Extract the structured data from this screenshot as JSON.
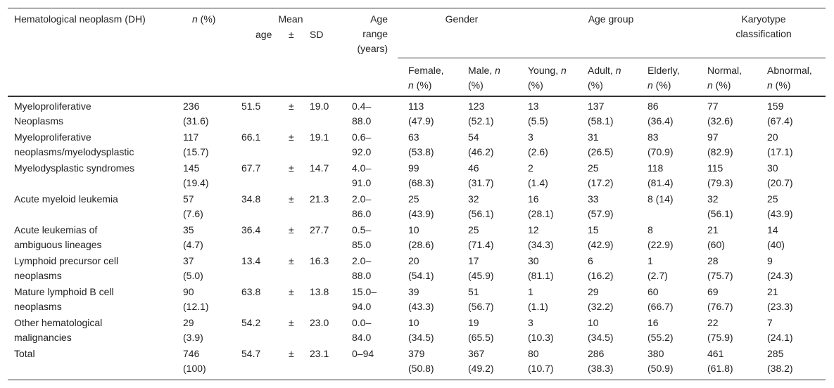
{
  "header": {
    "neoplasm": [
      [
        "Hematological neoplasm (DH)"
      ]
    ],
    "n_pct": [
      [
        {
          "i": "n"
        },
        " (%)"
      ]
    ],
    "mean": [
      [
        "Mean"
      ]
    ],
    "age": [
      [
        "age"
      ]
    ],
    "pm": [
      [
        "±"
      ]
    ],
    "sd": [
      [
        "SD"
      ]
    ],
    "age_range": [
      [
        "Age"
      ],
      [
        "range"
      ],
      [
        "(years)"
      ]
    ],
    "gender": [
      [
        "Gender"
      ]
    ],
    "age_group": [
      [
        "Age group"
      ]
    ],
    "karyotype": [
      [
        "Karyotype"
      ],
      [
        "classification"
      ]
    ],
    "sub": [
      [
        [
          "Female,"
        ],
        [
          {
            "i": "n"
          },
          " (%)"
        ]
      ],
      [
        [
          "Male, ",
          {
            "i": "n"
          }
        ],
        [
          "(%)"
        ]
      ],
      [
        [
          "Young, ",
          {
            "i": "n"
          }
        ],
        [
          "(%)"
        ]
      ],
      [
        [
          "Adult, ",
          {
            "i": "n"
          }
        ],
        [
          "(%)"
        ]
      ],
      [
        [
          "Elderly,"
        ],
        [
          {
            "i": "n"
          },
          " (%)"
        ]
      ],
      [
        [
          "Normal,"
        ],
        [
          {
            "i": "n"
          },
          " (%)"
        ]
      ],
      [
        [
          "Abnormal,"
        ],
        [
          {
            "i": "n"
          },
          " (%)"
        ]
      ]
    ]
  },
  "rows": [
    {
      "name": [
        "Myeloproliferative",
        "Neoplasms"
      ],
      "n": [
        "236",
        "(31.6)"
      ],
      "mean": [
        "51.5"
      ],
      "pm": [
        "±"
      ],
      "sd": [
        "19.0"
      ],
      "range": [
        "0.4–",
        "88.0"
      ],
      "cells": [
        [
          "113",
          "(47.9)"
        ],
        [
          "123",
          "(52.1)"
        ],
        [
          "13",
          "(5.5)"
        ],
        [
          "137",
          "(58.1)"
        ],
        [
          "86",
          "(36.4)"
        ],
        [
          "77",
          "(32.6)"
        ],
        [
          "159",
          "(67.4)"
        ]
      ]
    },
    {
      "name": [
        "Myeloproliferative",
        "neoplasms/myelodysplastic"
      ],
      "n": [
        "117",
        "(15.7)"
      ],
      "mean": [
        "66.1"
      ],
      "pm": [
        "±"
      ],
      "sd": [
        "19.1"
      ],
      "range": [
        "0.6–",
        "92.0"
      ],
      "cells": [
        [
          "63",
          "(53.8)"
        ],
        [
          "54",
          "(46.2)"
        ],
        [
          "3",
          "(2.6)"
        ],
        [
          "31",
          "(26.5)"
        ],
        [
          "83",
          "(70.9)"
        ],
        [
          "97",
          "(82.9)"
        ],
        [
          "20",
          "(17.1)"
        ]
      ]
    },
    {
      "name": [
        "Myelodysplastic syndromes"
      ],
      "n": [
        "145",
        "(19.4)"
      ],
      "mean": [
        "67.7"
      ],
      "pm": [
        "±"
      ],
      "sd": [
        "14.7"
      ],
      "range": [
        "4.0–",
        "91.0"
      ],
      "cells": [
        [
          "99",
          "(68.3)"
        ],
        [
          "46",
          "(31.7)"
        ],
        [
          "2",
          "(1.4)"
        ],
        [
          "25",
          "(17.2)"
        ],
        [
          "118",
          "(81.4)"
        ],
        [
          "115",
          "(79.3)"
        ],
        [
          "30",
          "(20.7)"
        ]
      ]
    },
    {
      "name": [
        "Acute myeloid leukemia"
      ],
      "n": [
        "57",
        "(7.6)"
      ],
      "mean": [
        "34.8"
      ],
      "pm": [
        "±"
      ],
      "sd": [
        "21.3"
      ],
      "range": [
        "2.0–",
        "86.0"
      ],
      "cells": [
        [
          "25",
          "(43.9)"
        ],
        [
          "32",
          "(56.1)"
        ],
        [
          "16",
          "(28.1)"
        ],
        [
          "33",
          "(57.9)"
        ],
        [
          "8 (14)"
        ],
        [
          "32",
          "(56.1)"
        ],
        [
          "25",
          "(43.9)"
        ]
      ]
    },
    {
      "name": [
        "Acute leukemias of",
        "ambiguous lineages"
      ],
      "n": [
        "35",
        "(4.7)"
      ],
      "mean": [
        "36.4"
      ],
      "pm": [
        "±"
      ],
      "sd": [
        "27.7"
      ],
      "range": [
        "0.5–",
        "85.0"
      ],
      "cells": [
        [
          "10",
          "(28.6)"
        ],
        [
          "25",
          "(71.4)"
        ],
        [
          "12",
          "(34.3)"
        ],
        [
          "15",
          "(42.9)"
        ],
        [
          "8",
          "(22.9)"
        ],
        [
          "21",
          "(60)"
        ],
        [
          "14",
          "(40)"
        ]
      ]
    },
    {
      "name": [
        "Lymphoid precursor cell",
        "neoplasms"
      ],
      "n": [
        "37",
        "(5.0)"
      ],
      "mean": [
        "13.4"
      ],
      "pm": [
        "±"
      ],
      "sd": [
        "16.3"
      ],
      "range": [
        "2.0–",
        "88.0"
      ],
      "cells": [
        [
          "20",
          "(54.1)"
        ],
        [
          "17",
          "(45.9)"
        ],
        [
          "30",
          "(81.1)"
        ],
        [
          "6",
          "(16.2)"
        ],
        [
          "1",
          "(2.7)"
        ],
        [
          "28",
          "(75.7)"
        ],
        [
          "9",
          "(24.3)"
        ]
      ]
    },
    {
      "name": [
        "Mature lymphoid B cell",
        "neoplasms"
      ],
      "n": [
        "90",
        "(12.1)"
      ],
      "mean": [
        "63.8"
      ],
      "pm": [
        "±"
      ],
      "sd": [
        "13.8"
      ],
      "range": [
        "15.0–",
        "94.0"
      ],
      "cells": [
        [
          "39",
          "(43.3)"
        ],
        [
          "51",
          "(56.7)"
        ],
        [
          "1",
          "(1.1)"
        ],
        [
          "29",
          "(32.2)"
        ],
        [
          "60",
          "(66.7)"
        ],
        [
          "69",
          "(76.7)"
        ],
        [
          "21",
          "(23.3)"
        ]
      ]
    },
    {
      "name": [
        "Other hematological",
        "malignancies"
      ],
      "n": [
        "29",
        "(3.9)"
      ],
      "mean": [
        "54.2"
      ],
      "pm": [
        "±"
      ],
      "sd": [
        "23.0"
      ],
      "range": [
        "0.0–",
        "84.0"
      ],
      "cells": [
        [
          "10",
          "(34.5)"
        ],
        [
          "19",
          "(65.5)"
        ],
        [
          "3",
          "(10.3)"
        ],
        [
          "10",
          "(34.5)"
        ],
        [
          "16",
          "(55.2)"
        ],
        [
          "22",
          "(75.9)"
        ],
        [
          "7",
          "(24.1)"
        ]
      ]
    },
    {
      "name": [
        "Total"
      ],
      "n": [
        "746",
        "(100)"
      ],
      "mean": [
        "54.7"
      ],
      "pm": [
        "±"
      ],
      "sd": [
        "23.1"
      ],
      "range": [
        "0–94"
      ],
      "cells": [
        [
          "379",
          "(50.8)"
        ],
        [
          "367",
          "(49.2)"
        ],
        [
          "80",
          "(10.7)"
        ],
        [
          "286",
          "(38.3)"
        ],
        [
          "380",
          "(50.9)"
        ],
        [
          "461",
          "(61.8)"
        ],
        [
          "285",
          "(38.2)"
        ]
      ]
    }
  ]
}
